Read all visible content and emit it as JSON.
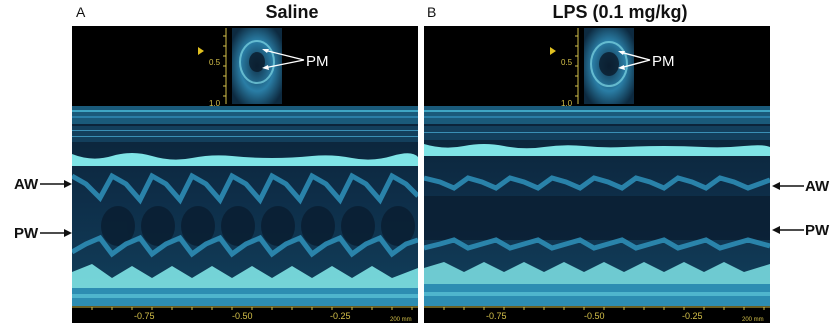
{
  "panels": [
    {
      "letter": "A",
      "title": "Saline",
      "inset_label": "PM",
      "depth_ticks": [
        "0.5",
        "1.0"
      ],
      "time_ticks": [
        "-0.75",
        "-0.50",
        "-0.25"
      ],
      "scale_note": "200 mm",
      "wall_labels": [
        "AW",
        "PW"
      ]
    },
    {
      "letter": "B",
      "title": "LPS (0.1 mg/kg)",
      "inset_label": "PM",
      "depth_ticks": [
        "0.5",
        "1.0"
      ],
      "time_ticks": [
        "-0.75",
        "-0.50",
        "-0.25"
      ],
      "scale_note": "200 mm",
      "wall_labels": [
        "AW",
        "PW"
      ]
    }
  ],
  "colors": {
    "background": "#000000",
    "tissue_dark": "#0e2f4a",
    "tissue_mid": "#2a7ea6",
    "tissue_bright": "#8ff0ee",
    "tick_yellow": "#d4c04a"
  }
}
